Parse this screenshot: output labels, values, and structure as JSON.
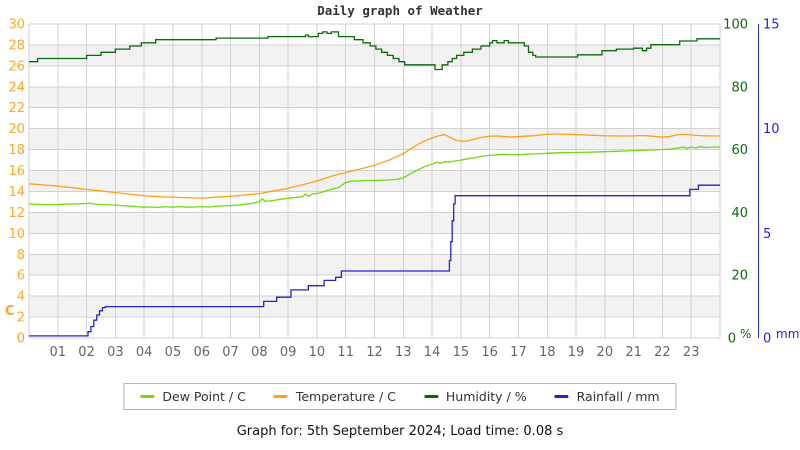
{
  "title": "Daily graph of Weather",
  "caption": "Graph for: 5th September 2024; Load time: 0.08 s",
  "legend": {
    "items": [
      {
        "label": "Dew Point / C",
        "color": "#70d910",
        "series": "dew_point"
      },
      {
        "label": "Temperature / C",
        "color": "#ffa018",
        "series": "temperature"
      },
      {
        "label": "Humidity / %",
        "color": "#0a6b0a",
        "series": "humidity"
      },
      {
        "label": "Rainfall / mm",
        "color": "#2323d3",
        "series": "rainfall"
      }
    ]
  },
  "chart_data": {
    "type": "line",
    "title": "Daily graph of Weather",
    "x_axis": {
      "range": [
        0,
        24
      ],
      "hour_labels": [
        "01",
        "02",
        "03",
        "04",
        "05",
        "06",
        "07",
        "08",
        "09",
        "10",
        "11",
        "12",
        "13",
        "14",
        "15",
        "16",
        "17",
        "18",
        "19",
        "20",
        "21",
        "22",
        "23"
      ],
      "label_color": "#666666"
    },
    "axes": {
      "temp_c": {
        "side": "left",
        "range": [
          0,
          30
        ],
        "ticks": [
          0,
          2,
          4,
          6,
          8,
          10,
          12,
          14,
          16,
          18,
          20,
          22,
          24,
          26,
          28,
          30
        ],
        "color": "#ffa626",
        "unit_label": "C"
      },
      "humidity_pct": {
        "side": "right",
        "range": [
          0,
          100
        ],
        "ticks": [
          0,
          20,
          40,
          60,
          80,
          100
        ],
        "color": "#0a6b0a",
        "unit_label": "%"
      },
      "rain_mm": {
        "side": "right-outer",
        "range": [
          0,
          15
        ],
        "ticks": [
          0,
          5,
          10,
          15
        ],
        "color": "#2323e0",
        "unit_label": "mm"
      }
    },
    "plot": {
      "band_colors": [
        "#ffffff",
        "#f2f2f2"
      ],
      "grid_color": "#d2d2d2",
      "grid_on": true
    },
    "legend_position": "bottom",
    "series": [
      {
        "name": "Humidity / %",
        "axis": "humidity_pct",
        "color": "#0a6b0a",
        "interpolation": "step",
        "points": [
          [
            0,
            88
          ],
          [
            0.3,
            89
          ],
          [
            2,
            90
          ],
          [
            2.5,
            91
          ],
          [
            3,
            92
          ],
          [
            3.5,
            93
          ],
          [
            3.9,
            94
          ],
          [
            4.4,
            95
          ],
          [
            6.5,
            95.5
          ],
          [
            8.3,
            96
          ],
          [
            9.6,
            96.5
          ],
          [
            9.7,
            96
          ],
          [
            10.05,
            97
          ],
          [
            10.2,
            97.5
          ],
          [
            10.35,
            97
          ],
          [
            10.5,
            97.5
          ],
          [
            10.75,
            96
          ],
          [
            11.3,
            95
          ],
          [
            11.6,
            94
          ],
          [
            11.85,
            93
          ],
          [
            12.05,
            92
          ],
          [
            12.25,
            91
          ],
          [
            12.45,
            90
          ],
          [
            12.65,
            89
          ],
          [
            12.85,
            88
          ],
          [
            13.05,
            87
          ],
          [
            14.1,
            85.5
          ],
          [
            14.35,
            87
          ],
          [
            14.55,
            88
          ],
          [
            14.7,
            89
          ],
          [
            14.85,
            90
          ],
          [
            15.1,
            91
          ],
          [
            15.4,
            92
          ],
          [
            15.7,
            93
          ],
          [
            16,
            94
          ],
          [
            16.1,
            94.7
          ],
          [
            16.25,
            94
          ],
          [
            16.5,
            94.7
          ],
          [
            16.65,
            94
          ],
          [
            17.2,
            93
          ],
          [
            17.35,
            91
          ],
          [
            17.5,
            90
          ],
          [
            17.6,
            89.5
          ],
          [
            19.05,
            90.2
          ],
          [
            19.9,
            91.5
          ],
          [
            20.4,
            92
          ],
          [
            21,
            92.3
          ],
          [
            21.3,
            91.5
          ],
          [
            21.45,
            92.3
          ],
          [
            21.6,
            93.4
          ],
          [
            22.6,
            94.6
          ],
          [
            23.2,
            95.3
          ]
        ]
      },
      {
        "name": "Temperature / C",
        "axis": "temp_c",
        "color": "#ffa018",
        "interpolation": "linear",
        "points": [
          [
            0,
            14.72
          ],
          [
            0.25,
            14.68
          ],
          [
            0.5,
            14.62
          ],
          [
            0.75,
            14.57
          ],
          [
            1,
            14.5
          ],
          [
            1.25,
            14.44
          ],
          [
            1.5,
            14.36
          ],
          [
            1.75,
            14.28
          ],
          [
            2,
            14.2
          ],
          [
            2.25,
            14.12
          ],
          [
            2.5,
            14.05
          ],
          [
            2.75,
            13.97
          ],
          [
            3,
            13.9
          ],
          [
            3.25,
            13.82
          ],
          [
            3.5,
            13.75
          ],
          [
            3.75,
            13.67
          ],
          [
            4,
            13.6
          ],
          [
            4.25,
            13.55
          ],
          [
            4.5,
            13.5
          ],
          [
            4.75,
            13.47
          ],
          [
            5,
            13.45
          ],
          [
            5.25,
            13.42
          ],
          [
            5.5,
            13.4
          ],
          [
            5.75,
            13.38
          ],
          [
            6,
            13.37
          ],
          [
            6.25,
            13.4
          ],
          [
            6.5,
            13.45
          ],
          [
            6.75,
            13.5
          ],
          [
            7,
            13.55
          ],
          [
            7.25,
            13.6
          ],
          [
            7.5,
            13.67
          ],
          [
            7.75,
            13.73
          ],
          [
            8,
            13.8
          ],
          [
            8.25,
            13.92
          ],
          [
            8.5,
            14.05
          ],
          [
            8.75,
            14.17
          ],
          [
            9,
            14.3
          ],
          [
            9.25,
            14.47
          ],
          [
            9.5,
            14.65
          ],
          [
            9.75,
            14.82
          ],
          [
            10,
            15.0
          ],
          [
            10.25,
            15.22
          ],
          [
            10.5,
            15.45
          ],
          [
            10.75,
            15.63
          ],
          [
            11,
            15.8
          ],
          [
            11.25,
            15.97
          ],
          [
            11.5,
            16.15
          ],
          [
            11.75,
            16.32
          ],
          [
            12,
            16.5
          ],
          [
            12.25,
            16.75
          ],
          [
            12.5,
            17.0
          ],
          [
            12.75,
            17.3
          ],
          [
            13,
            17.6
          ],
          [
            13.25,
            18.05
          ],
          [
            13.5,
            18.5
          ],
          [
            13.75,
            18.85
          ],
          [
            14,
            19.1
          ],
          [
            14.2,
            19.3
          ],
          [
            14.4,
            19.42
          ],
          [
            14.55,
            19.3
          ],
          [
            14.7,
            19.05
          ],
          [
            14.85,
            18.88
          ],
          [
            15,
            18.8
          ],
          [
            15.2,
            18.82
          ],
          [
            15.4,
            18.95
          ],
          [
            15.6,
            19.1
          ],
          [
            15.8,
            19.2
          ],
          [
            16,
            19.28
          ],
          [
            16.25,
            19.3
          ],
          [
            16.5,
            19.25
          ],
          [
            16.75,
            19.2
          ],
          [
            17,
            19.25
          ],
          [
            17.25,
            19.28
          ],
          [
            17.5,
            19.32
          ],
          [
            17.75,
            19.4
          ],
          [
            18,
            19.45
          ],
          [
            18.25,
            19.5
          ],
          [
            18.5,
            19.48
          ],
          [
            18.75,
            19.45
          ],
          [
            19,
            19.42
          ],
          [
            19.25,
            19.4
          ],
          [
            19.5,
            19.38
          ],
          [
            19.75,
            19.35
          ],
          [
            20,
            19.32
          ],
          [
            20.5,
            19.3
          ],
          [
            21,
            19.3
          ],
          [
            21.25,
            19.35
          ],
          [
            21.5,
            19.32
          ],
          [
            21.75,
            19.25
          ],
          [
            22,
            19.2
          ],
          [
            22.25,
            19.25
          ],
          [
            22.5,
            19.4
          ],
          [
            22.75,
            19.45
          ],
          [
            23,
            19.4
          ],
          [
            23.25,
            19.35
          ],
          [
            23.5,
            19.32
          ],
          [
            23.75,
            19.3
          ],
          [
            24,
            19.3
          ]
        ]
      },
      {
        "name": "Dew Point / C",
        "axis": "temp_c",
        "color": "#70d910",
        "interpolation": "linear",
        "points": [
          [
            0,
            12.8
          ],
          [
            0.25,
            12.78
          ],
          [
            0.5,
            12.75
          ],
          [
            0.75,
            12.75
          ],
          [
            1,
            12.75
          ],
          [
            1.25,
            12.78
          ],
          [
            1.5,
            12.8
          ],
          [
            1.75,
            12.82
          ],
          [
            2,
            12.85
          ],
          [
            2.1,
            12.9
          ],
          [
            2.25,
            12.8
          ],
          [
            2.5,
            12.75
          ],
          [
            2.75,
            12.72
          ],
          [
            3,
            12.7
          ],
          [
            3.25,
            12.65
          ],
          [
            3.5,
            12.6
          ],
          [
            3.75,
            12.55
          ],
          [
            4,
            12.5
          ],
          [
            4.25,
            12.52
          ],
          [
            4.5,
            12.48
          ],
          [
            4.75,
            12.55
          ],
          [
            5,
            12.5
          ],
          [
            5.25,
            12.55
          ],
          [
            5.5,
            12.5
          ],
          [
            5.75,
            12.52
          ],
          [
            6,
            12.55
          ],
          [
            6.25,
            12.52
          ],
          [
            6.5,
            12.58
          ],
          [
            6.75,
            12.62
          ],
          [
            7,
            12.65
          ],
          [
            7.25,
            12.7
          ],
          [
            7.5,
            12.78
          ],
          [
            7.75,
            12.88
          ],
          [
            8,
            13.0
          ],
          [
            8.1,
            13.3
          ],
          [
            8.2,
            13.05
          ],
          [
            8.5,
            13.15
          ],
          [
            8.75,
            13.25
          ],
          [
            9,
            13.35
          ],
          [
            9.25,
            13.42
          ],
          [
            9.5,
            13.5
          ],
          [
            9.6,
            13.75
          ],
          [
            9.7,
            13.55
          ],
          [
            9.85,
            13.78
          ],
          [
            10,
            13.8
          ],
          [
            10.25,
            14.0
          ],
          [
            10.5,
            14.2
          ],
          [
            10.75,
            14.38
          ],
          [
            11,
            14.85
          ],
          [
            11.25,
            15.0
          ],
          [
            11.5,
            15.02
          ],
          [
            11.75,
            15.05
          ],
          [
            12,
            15.05
          ],
          [
            12.25,
            15.08
          ],
          [
            12.5,
            15.1
          ],
          [
            12.75,
            15.15
          ],
          [
            13,
            15.3
          ],
          [
            13.25,
            15.7
          ],
          [
            13.5,
            16.05
          ],
          [
            13.75,
            16.4
          ],
          [
            14,
            16.6
          ],
          [
            14.15,
            16.8
          ],
          [
            14.3,
            16.7
          ],
          [
            14.45,
            16.85
          ],
          [
            14.6,
            16.8
          ],
          [
            14.75,
            16.9
          ],
          [
            15,
            17.0
          ],
          [
            15.25,
            17.12
          ],
          [
            15.5,
            17.25
          ],
          [
            15.75,
            17.38
          ],
          [
            16,
            17.45
          ],
          [
            16.25,
            17.5
          ],
          [
            16.5,
            17.55
          ],
          [
            16.75,
            17.52
          ],
          [
            17,
            17.5
          ],
          [
            17.25,
            17.55
          ],
          [
            17.5,
            17.58
          ],
          [
            17.75,
            17.62
          ],
          [
            18,
            17.65
          ],
          [
            18.5,
            17.7
          ],
          [
            19,
            17.72
          ],
          [
            19.5,
            17.75
          ],
          [
            20,
            17.8
          ],
          [
            20.5,
            17.85
          ],
          [
            21,
            17.9
          ],
          [
            21.5,
            17.95
          ],
          [
            22,
            18.0
          ],
          [
            22.25,
            18.05
          ],
          [
            22.5,
            18.12
          ],
          [
            22.7,
            18.25
          ],
          [
            22.85,
            18.12
          ],
          [
            23,
            18.25
          ],
          [
            23.15,
            18.15
          ],
          [
            23.3,
            18.28
          ],
          [
            23.5,
            18.2
          ],
          [
            23.75,
            18.25
          ],
          [
            24,
            18.25
          ]
        ]
      },
      {
        "name": "Rainfall / mm",
        "axis": "rain_mm",
        "color": "#2323d3",
        "interpolation": "step",
        "points": [
          [
            0,
            0.1
          ],
          [
            2.05,
            0.3
          ],
          [
            2.15,
            0.55
          ],
          [
            2.25,
            0.85
          ],
          [
            2.35,
            1.1
          ],
          [
            2.45,
            1.3
          ],
          [
            2.55,
            1.45
          ],
          [
            2.65,
            1.5
          ],
          [
            8.15,
            1.75
          ],
          [
            8.6,
            1.95
          ],
          [
            9.1,
            2.3
          ],
          [
            9.7,
            2.5
          ],
          [
            10.25,
            2.75
          ],
          [
            10.65,
            2.9
          ],
          [
            10.85,
            3.2
          ],
          [
            14.6,
            3.7
          ],
          [
            14.65,
            4.6
          ],
          [
            14.7,
            5.6
          ],
          [
            14.75,
            6.4
          ],
          [
            14.8,
            6.8
          ],
          [
            22.95,
            7.1
          ],
          [
            23.25,
            7.3
          ]
        ]
      }
    ]
  }
}
